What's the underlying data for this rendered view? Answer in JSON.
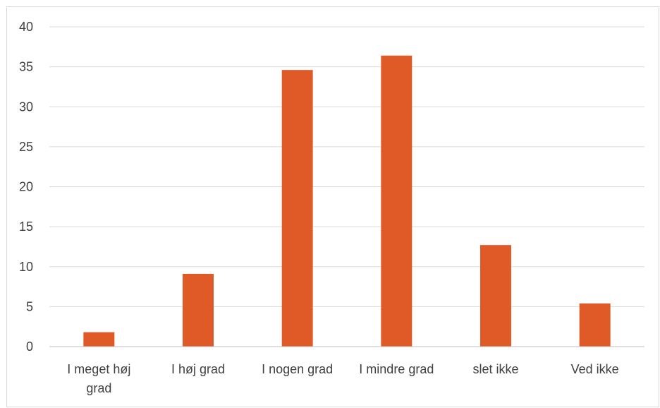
{
  "chart_data": {
    "type": "bar",
    "categories": [
      [
        "I meget høj",
        "grad"
      ],
      [
        "I høj grad"
      ],
      [
        "I nogen grad"
      ],
      [
        "I mindre grad"
      ],
      [
        "slet ikke"
      ],
      [
        "Ved ikke"
      ]
    ],
    "values": [
      1.8,
      9.1,
      34.6,
      36.4,
      12.7,
      5.4
    ],
    "yticks": [
      "0",
      "5",
      "10",
      "15",
      "20",
      "25",
      "30",
      "35",
      "40"
    ],
    "ylim": [
      0,
      40
    ],
    "grid": true,
    "legend": "none",
    "colors": {
      "bar": "#e05a28",
      "grid": "#d9d9d9",
      "axis": "#bfbfbf",
      "text": "#404040"
    }
  }
}
